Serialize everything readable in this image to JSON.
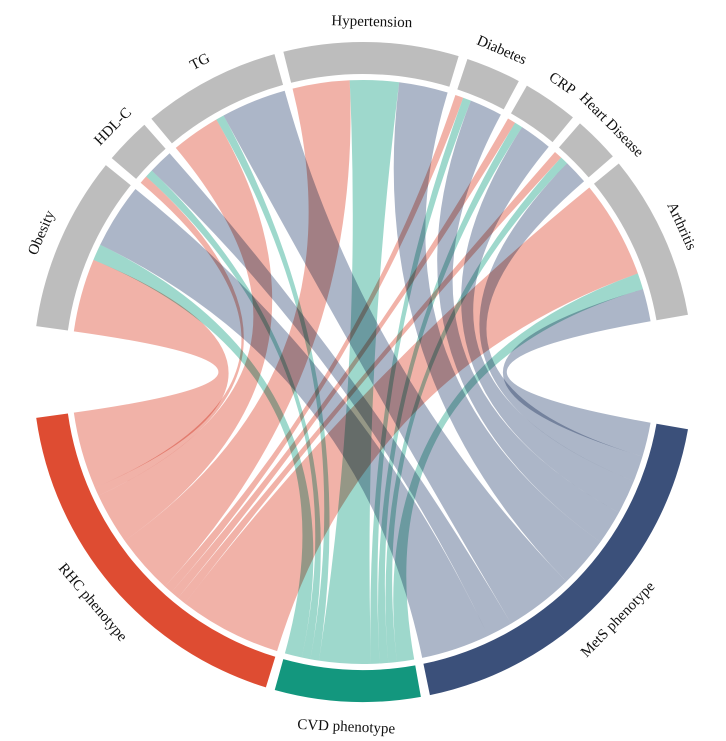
{
  "groups": [
    {
      "key": "rhc",
      "label": "RHC phenotype",
      "color": "#de4c32"
    },
    {
      "key": "cvd",
      "label": "CVD phenotype",
      "color": "#13977e"
    },
    {
      "key": "mets",
      "label": "MetS phenotype",
      "color": "#3b507a"
    }
  ],
  "segments": [
    {
      "key": "obesity",
      "label": "Obesity",
      "color": "#bdbdbd"
    },
    {
      "key": "hdlc",
      "label": "HDL-C",
      "color": "#bdbdbd"
    },
    {
      "key": "tg",
      "label": "TG",
      "color": "#bdbdbd"
    },
    {
      "key": "hypertension",
      "label": "Hypertension",
      "color": "#bdbdbd"
    },
    {
      "key": "diabetes",
      "label": "Diabetes",
      "color": "#bdbdbd"
    },
    {
      "key": "crp",
      "label": "CRP",
      "color": "#bdbdbd"
    },
    {
      "key": "heart",
      "label": "Heart Disease",
      "color": "#bdbdbd"
    },
    {
      "key": "arthritis",
      "label": "Arthritis",
      "color": "#bdbdbd"
    }
  ],
  "ribbon_colors": {
    "rhc": "#eea195",
    "cvd": "#89cfc1",
    "mets": "#9aa6bc"
  },
  "chord_data": {
    "type": "chord",
    "sources": [
      "RHC phenotype",
      "CVD phenotype",
      "MetS phenotype"
    ],
    "targets": [
      "Obesity",
      "HDL-C",
      "TG",
      "Hypertension",
      "Diabetes",
      "CRP",
      "Heart Disease",
      "Arthritis"
    ],
    "matrix": [
      [
        9,
        1,
        6,
        7,
        1,
        1,
        1,
        12
      ],
      [
        2,
        1,
        1,
        6,
        1,
        1,
        1,
        2
      ],
      [
        8,
        3,
        8,
        6,
        4,
        4,
        3,
        4
      ]
    ]
  }
}
